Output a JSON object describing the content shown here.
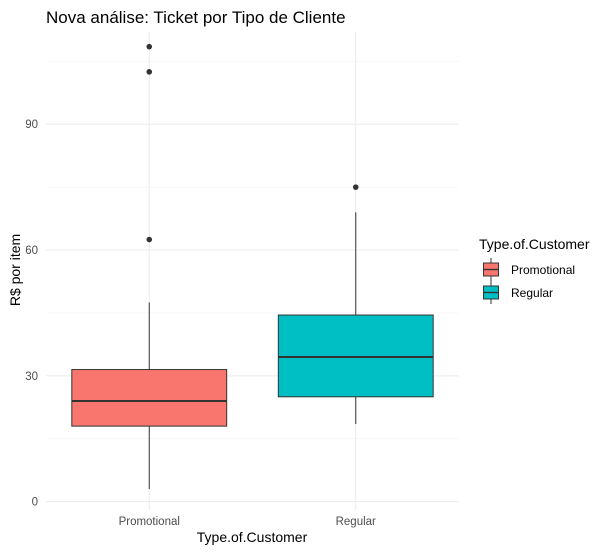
{
  "chart_data": {
    "type": "boxplot",
    "title": "Nova análise: Ticket por Tipo de Cliente",
    "xlabel": "Type.of.Customer",
    "ylabel": "R$ por item",
    "ylim": [
      -2,
      112
    ],
    "yticks": [
      "0",
      "30",
      "60",
      "90"
    ],
    "grid": true,
    "legend": {
      "title": "Type.of.Customer",
      "position": "right",
      "entries": [
        "Promotional",
        "Regular"
      ]
    },
    "categories": [
      "Promotional",
      "Regular"
    ],
    "boxes": [
      {
        "name": "Promotional",
        "color": "#F8766D",
        "whisker_low": 3,
        "q1": 18,
        "median": 24,
        "q3": 31.5,
        "whisker_high": 47.5,
        "outliers": [
          62.5,
          102.5,
          108.5
        ]
      },
      {
        "name": "Regular",
        "color": "#00BFC4",
        "whisker_low": 18.5,
        "q1": 25,
        "median": 34.5,
        "q3": 44.5,
        "whisker_high": 69,
        "outliers": [
          75
        ]
      }
    ]
  }
}
